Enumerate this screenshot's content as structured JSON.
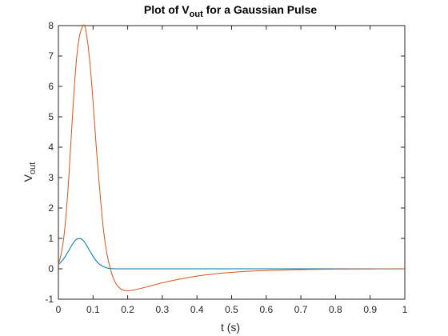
{
  "chart_data": {
    "type": "line",
    "title": {
      "prefix": "Plot of V",
      "subscript": "out",
      "suffix": " for a Gaussian Pulse"
    },
    "xlabel": "t (s)",
    "ylabel": {
      "main": "V",
      "subscript": "out"
    },
    "xlim": [
      0,
      1
    ],
    "ylim": [
      -1,
      8
    ],
    "xticks": [
      0,
      0.1,
      0.2,
      0.3,
      0.4,
      0.5,
      0.6,
      0.7,
      0.8,
      0.9,
      1
    ],
    "xtick_labels": [
      "0",
      "0.1",
      "0.2",
      "0.3",
      "0.4",
      "0.5",
      "0.6",
      "0.7",
      "0.8",
      "0.9",
      "1"
    ],
    "yticks": [
      -1,
      0,
      1,
      2,
      3,
      4,
      5,
      6,
      7,
      8
    ],
    "ytick_labels": [
      "-1",
      "0",
      "1",
      "2",
      "3",
      "4",
      "5",
      "6",
      "7",
      "8"
    ],
    "grid": false,
    "legend": "none",
    "series": [
      {
        "color": "#0072BD",
        "x": [
          0,
          0.01,
          0.02,
          0.03,
          0.04,
          0.05,
          0.06,
          0.07,
          0.08,
          0.09,
          0.1,
          0.11,
          0.12,
          0.13,
          0.14,
          0.15,
          0.17,
          0.2,
          0.3,
          0.5,
          0.7,
          1.0
        ],
        "y": [
          0.14,
          0.25,
          0.41,
          0.6,
          0.8,
          0.95,
          1.0,
          0.95,
          0.8,
          0.6,
          0.41,
          0.25,
          0.14,
          0.07,
          0.03,
          0.01,
          0.0,
          0.0,
          0.0,
          0.0,
          0.0,
          0.0
        ]
      },
      {
        "color": "#D95319",
        "x": [
          0,
          0.01,
          0.02,
          0.03,
          0.04,
          0.05,
          0.06,
          0.07,
          0.075,
          0.08,
          0.09,
          0.1,
          0.11,
          0.12,
          0.13,
          0.14,
          0.15,
          0.16,
          0.17,
          0.18,
          0.19,
          0.2,
          0.21,
          0.22,
          0.24,
          0.26,
          0.28,
          0.3,
          0.35,
          0.4,
          0.45,
          0.5,
          0.55,
          0.6,
          0.65,
          0.7,
          0.75,
          0.8,
          0.85,
          0.9,
          0.95,
          1.0
        ],
        "y": [
          0.15,
          0.6,
          1.5,
          3.0,
          4.9,
          6.6,
          7.6,
          7.98,
          8.0,
          7.8,
          6.9,
          5.5,
          3.9,
          2.5,
          1.3,
          0.5,
          0.0,
          -0.35,
          -0.55,
          -0.66,
          -0.71,
          -0.72,
          -0.71,
          -0.69,
          -0.64,
          -0.58,
          -0.52,
          -0.46,
          -0.34,
          -0.24,
          -0.17,
          -0.12,
          -0.08,
          -0.055,
          -0.038,
          -0.025,
          -0.017,
          -0.011,
          -0.007,
          -0.005,
          -0.003,
          -0.002
        ]
      }
    ]
  }
}
